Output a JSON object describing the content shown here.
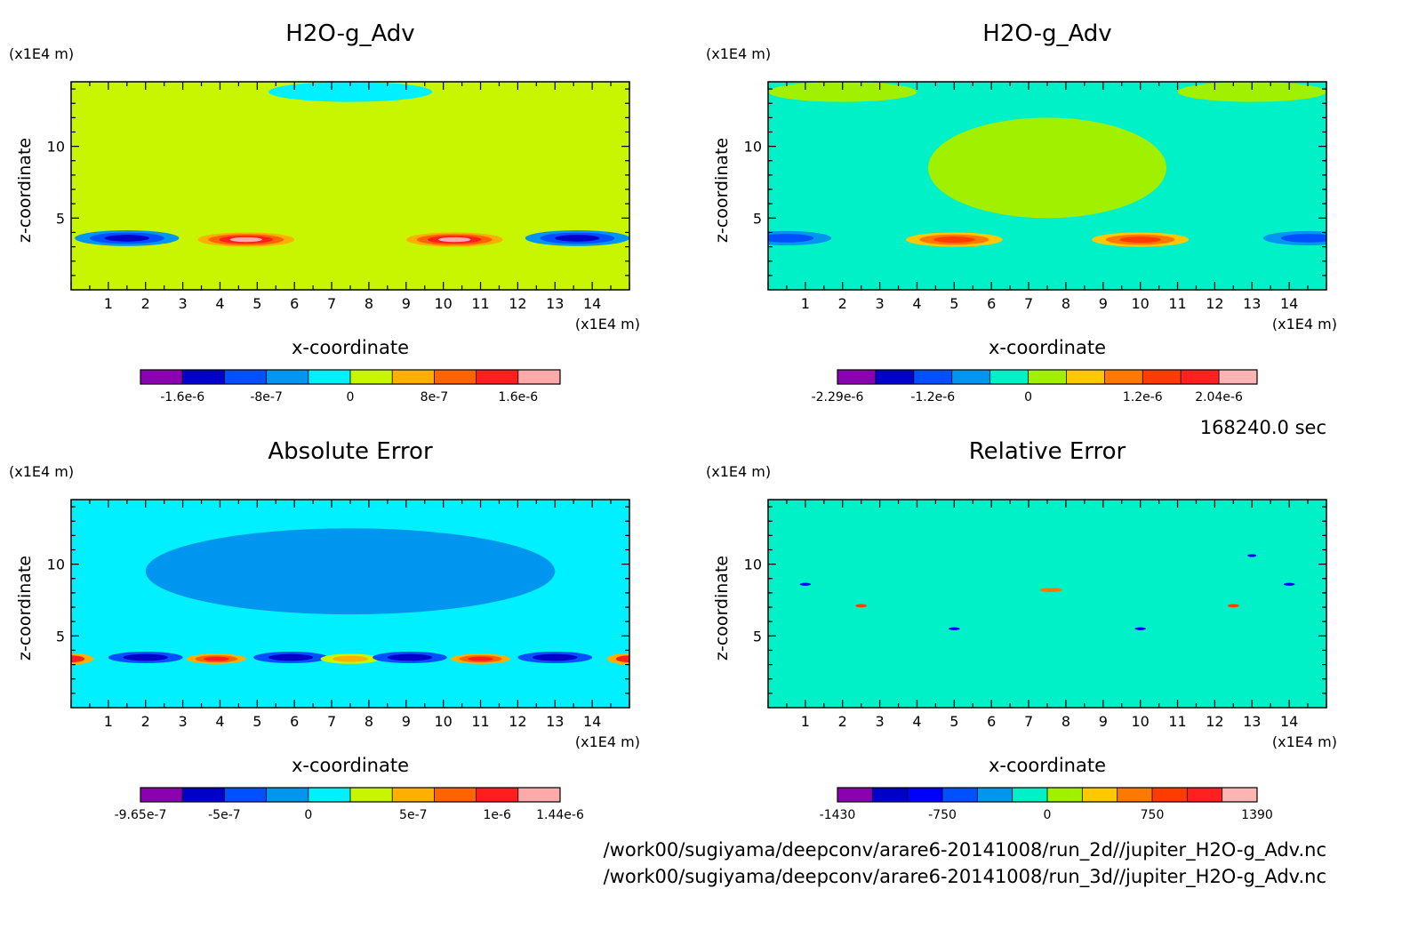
{
  "time_label": "168240.0 sec",
  "file_paths": [
    "/work00/sugiyama/deepconv/arare6-20141008/run_2d//jupiter_H2O-g_Adv.nc",
    "/work00/sugiyama/deepconv/arare6-20141008/run_3d//jupiter_H2O-g_Adv.nc"
  ],
  "chart_data": [
    {
      "type": "heatmap",
      "title": "H2O-g_Adv",
      "xlabel": "x-coordinate",
      "ylabel": "z-coordinate",
      "x_unit": "(x1E4 m)",
      "y_unit": "(x1E4 m)",
      "xlim": [
        0,
        15
      ],
      "ylim": [
        0,
        14.5
      ],
      "x_ticks": [
        "1",
        "2",
        "3",
        "4",
        "5",
        "6",
        "7",
        "8",
        "9",
        "10",
        "11",
        "12",
        "13",
        "14"
      ],
      "y_ticks": [
        "5",
        "10"
      ],
      "background_level": 5,
      "colorbar": {
        "levels": 10,
        "colors": [
          "#8b00b0",
          "#0000c8",
          "#0050ff",
          "#0096f0",
          "#00f0ff",
          "#c8f500",
          "#ffaf00",
          "#ff6400",
          "#ff1e1e",
          "#ffaaaa"
        ],
        "tick_labels": [
          "-1.6e-6",
          "-8e-7",
          "0",
          "8e-7",
          "1.6e-6"
        ],
        "tick_levels": [
          1,
          3,
          5,
          7,
          9
        ]
      },
      "features": [
        {
          "x": 1.5,
          "z": 3.6,
          "rx": 1.4,
          "rz": 0.55,
          "levels": [
            3,
            2,
            1
          ]
        },
        {
          "x": 4.7,
          "z": 3.5,
          "rx": 1.3,
          "rz": 0.5,
          "levels": [
            6,
            7,
            8,
            9
          ]
        },
        {
          "x": 10.3,
          "z": 3.5,
          "rx": 1.3,
          "rz": 0.5,
          "levels": [
            6,
            7,
            8,
            9
          ]
        },
        {
          "x": 13.6,
          "z": 3.6,
          "rx": 1.4,
          "rz": 0.55,
          "levels": [
            3,
            2,
            1
          ]
        },
        {
          "x": 7.5,
          "z": 8.5,
          "rx": 3.2,
          "rz": 3.5,
          "levels": [
            5
          ]
        },
        {
          "x": 7.5,
          "z": 13.8,
          "rx": 2.2,
          "rz": 0.7,
          "levels": [
            4
          ]
        }
      ]
    },
    {
      "type": "heatmap",
      "title": "H2O-g_Adv",
      "xlabel": "x-coordinate",
      "ylabel": "z-coordinate",
      "x_unit": "(x1E4 m)",
      "y_unit": "(x1E4 m)",
      "xlim": [
        0,
        15
      ],
      "ylim": [
        0,
        14.5
      ],
      "x_ticks": [
        "1",
        "2",
        "3",
        "4",
        "5",
        "6",
        "7",
        "8",
        "9",
        "10",
        "11",
        "12",
        "13",
        "14"
      ],
      "y_ticks": [
        "5",
        "10"
      ],
      "background_level": 4,
      "colorbar": {
        "levels": 11,
        "colors": [
          "#8b00b0",
          "#0000c8",
          "#0050ff",
          "#0096f0",
          "#00f0c8",
          "#a0f000",
          "#ffc800",
          "#ff7800",
          "#ff3c00",
          "#ff2020",
          "#ffb4b4"
        ],
        "tick_labels": [
          "-2.29e-6",
          "-1.2e-6",
          "0",
          "1.2e-6",
          "2.04e-6"
        ],
        "tick_levels": [
          0,
          2.5,
          5,
          8,
          10
        ]
      },
      "features": [
        {
          "x": 0.5,
          "z": 3.6,
          "rx": 1.2,
          "rz": 0.5,
          "levels": [
            3,
            2
          ]
        },
        {
          "x": 5.0,
          "z": 3.5,
          "rx": 1.3,
          "rz": 0.5,
          "levels": [
            6,
            7,
            8
          ]
        },
        {
          "x": 10.0,
          "z": 3.5,
          "rx": 1.3,
          "rz": 0.5,
          "levels": [
            6,
            7,
            8
          ]
        },
        {
          "x": 14.5,
          "z": 3.6,
          "rx": 1.2,
          "rz": 0.5,
          "levels": [
            3,
            2
          ]
        },
        {
          "x": 7.5,
          "z": 8.5,
          "rx": 3.2,
          "rz": 3.5,
          "levels": [
            5
          ]
        },
        {
          "x": 2.0,
          "z": 13.8,
          "rx": 2.0,
          "rz": 0.7,
          "levels": [
            5
          ]
        },
        {
          "x": 13.0,
          "z": 13.8,
          "rx": 2.0,
          "rz": 0.7,
          "levels": [
            5
          ]
        }
      ]
    },
    {
      "type": "heatmap",
      "title": "Absolute Error",
      "xlabel": "x-coordinate",
      "ylabel": "z-coordinate",
      "x_unit": "(x1E4 m)",
      "y_unit": "(x1E4 m)",
      "xlim": [
        0,
        15
      ],
      "ylim": [
        0,
        14.5
      ],
      "x_ticks": [
        "1",
        "2",
        "3",
        "4",
        "5",
        "6",
        "7",
        "8",
        "9",
        "10",
        "11",
        "12",
        "13",
        "14"
      ],
      "y_ticks": [
        "5",
        "10"
      ],
      "background_level": 4,
      "colorbar": {
        "levels": 10,
        "colors": [
          "#8b00b0",
          "#0000c8",
          "#0050ff",
          "#0096f0",
          "#00f0ff",
          "#c8f500",
          "#ffaf00",
          "#ff6400",
          "#ff1e1e",
          "#ffaaaa"
        ],
        "tick_labels": [
          "-9.65e-7",
          "-5e-7",
          "0",
          "5e-7",
          "1e-6",
          "1.44e-6"
        ],
        "tick_levels": [
          0,
          2,
          4,
          6.5,
          8.5,
          10
        ]
      },
      "features": [
        {
          "x": 7.5,
          "z": 9.5,
          "rx": 5.5,
          "rz": 3.0,
          "levels": [
            3
          ]
        },
        {
          "x": 0.0,
          "z": 3.4,
          "rx": 0.6,
          "rz": 0.4,
          "levels": [
            6,
            8
          ]
        },
        {
          "x": 2.0,
          "z": 3.5,
          "rx": 1.0,
          "rz": 0.4,
          "levels": [
            2,
            1
          ]
        },
        {
          "x": 3.9,
          "z": 3.4,
          "rx": 0.8,
          "rz": 0.35,
          "levels": [
            6,
            7,
            8
          ]
        },
        {
          "x": 5.9,
          "z": 3.5,
          "rx": 1.0,
          "rz": 0.4,
          "levels": [
            2,
            1
          ]
        },
        {
          "x": 7.5,
          "z": 3.4,
          "rx": 0.8,
          "rz": 0.35,
          "levels": [
            5,
            6
          ]
        },
        {
          "x": 9.1,
          "z": 3.5,
          "rx": 1.0,
          "rz": 0.4,
          "levels": [
            2,
            1
          ]
        },
        {
          "x": 11.0,
          "z": 3.4,
          "rx": 0.8,
          "rz": 0.35,
          "levels": [
            6,
            7,
            8
          ]
        },
        {
          "x": 13.0,
          "z": 3.5,
          "rx": 1.0,
          "rz": 0.4,
          "levels": [
            2,
            1
          ]
        },
        {
          "x": 15.0,
          "z": 3.4,
          "rx": 0.6,
          "rz": 0.4,
          "levels": [
            6,
            8
          ]
        }
      ]
    },
    {
      "type": "heatmap",
      "title": "Relative Error",
      "xlabel": "x-coordinate",
      "ylabel": "z-coordinate",
      "x_unit": "(x1E4 m)",
      "y_unit": "(x1E4 m)",
      "xlim": [
        0,
        15
      ],
      "ylim": [
        0,
        14.5
      ],
      "x_ticks": [
        "1",
        "2",
        "3",
        "4",
        "5",
        "6",
        "7",
        "8",
        "9",
        "10",
        "11",
        "12",
        "13",
        "14"
      ],
      "y_ticks": [
        "5",
        "10"
      ],
      "background_level": 5,
      "colorbar": {
        "levels": 12,
        "colors": [
          "#8b00b0",
          "#0000c8",
          "#0000ff",
          "#0050ff",
          "#0096f0",
          "#00f0c8",
          "#a0f000",
          "#ffc800",
          "#ff7800",
          "#ff3c00",
          "#ff2020",
          "#ffb4b4"
        ],
        "tick_labels": [
          "-1430",
          "-750",
          "0",
          "750",
          "1390"
        ],
        "tick_levels": [
          0,
          3,
          6,
          9,
          12
        ]
      },
      "features": [
        {
          "x": 2.5,
          "z": 7.1,
          "rx": 0.15,
          "rz": 0.12,
          "levels": [
            9
          ]
        },
        {
          "x": 1.0,
          "z": 8.6,
          "rx": 0.15,
          "rz": 0.1,
          "levels": [
            2
          ]
        },
        {
          "x": 5.0,
          "z": 5.5,
          "rx": 0.15,
          "rz": 0.1,
          "levels": [
            2
          ]
        },
        {
          "x": 7.6,
          "z": 8.2,
          "rx": 0.3,
          "rz": 0.15,
          "levels": [
            8
          ]
        },
        {
          "x": 10.0,
          "z": 5.5,
          "rx": 0.15,
          "rz": 0.1,
          "levels": [
            2
          ]
        },
        {
          "x": 12.5,
          "z": 7.1,
          "rx": 0.15,
          "rz": 0.12,
          "levels": [
            9
          ]
        },
        {
          "x": 14.0,
          "z": 8.6,
          "rx": 0.15,
          "rz": 0.1,
          "levels": [
            2
          ]
        },
        {
          "x": 13.0,
          "z": 10.6,
          "rx": 0.12,
          "rz": 0.1,
          "levels": [
            2
          ]
        }
      ]
    }
  ]
}
